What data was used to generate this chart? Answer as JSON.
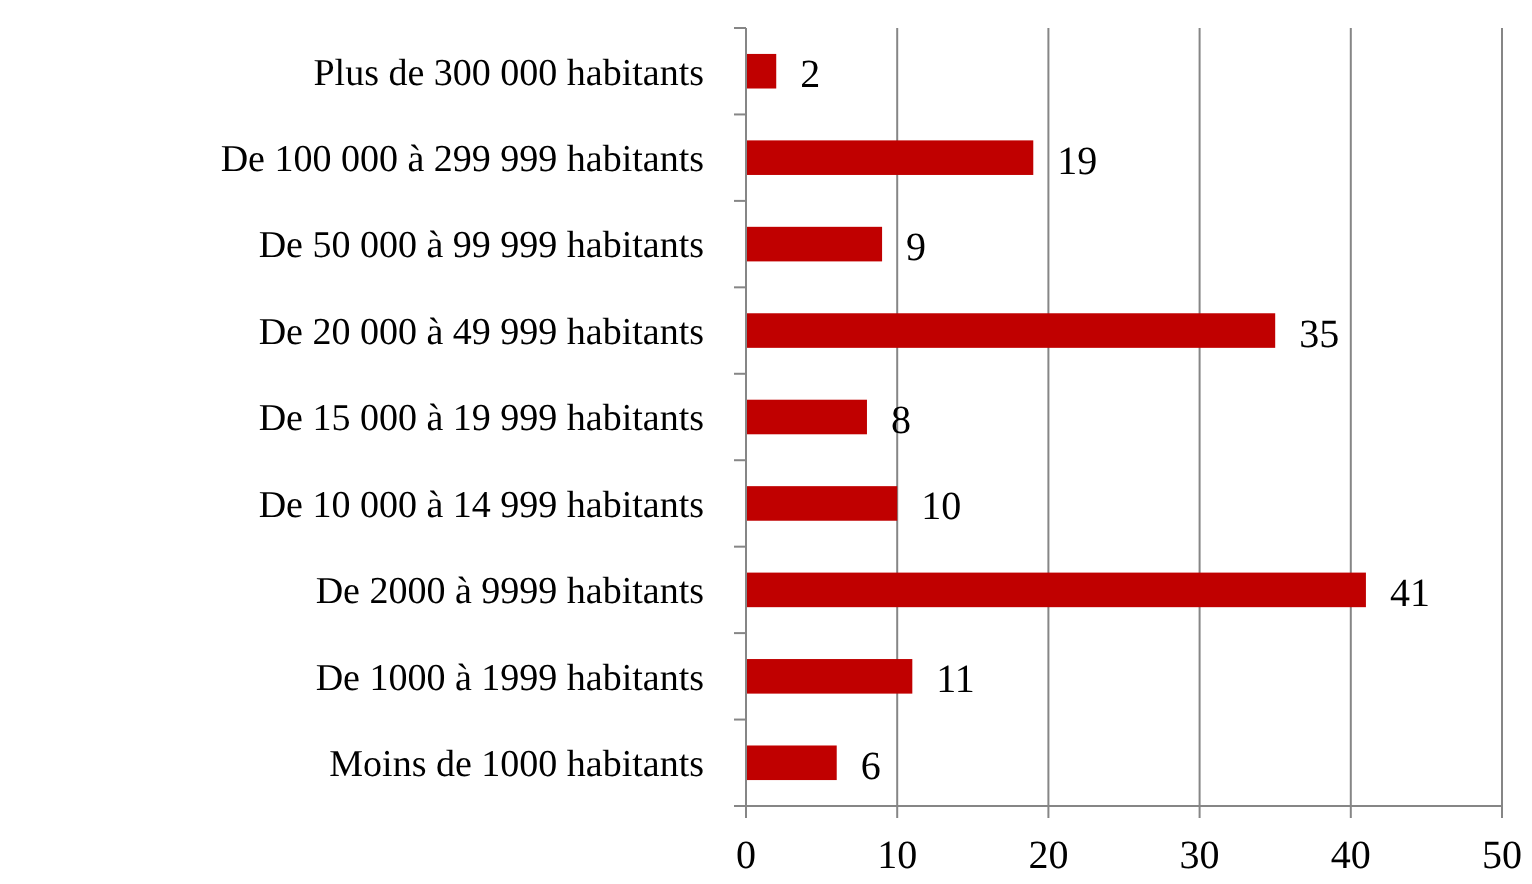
{
  "chart_data": {
    "type": "bar",
    "orientation": "horizontal",
    "categories": [
      "Plus de 300 000 habitants",
      "De 100 000 à 299 999 habitants",
      "De 50 000 à 99 999 habitants",
      "De 20 000 à 49 999 habitants",
      "De 15 000 à 19 999 habitants",
      "De 10 000 à 14 999 habitants",
      "De 2000 à 9999 habitants",
      "De 1000 à 1999 habitants",
      "Moins de 1000 habitants"
    ],
    "values": [
      2,
      19,
      9,
      35,
      8,
      10,
      41,
      11,
      6
    ],
    "color": "#c00000",
    "xlim": [
      0,
      50
    ],
    "xticks": [
      0,
      10,
      20,
      30,
      40,
      50
    ],
    "grid": "x",
    "data_labels": true
  }
}
